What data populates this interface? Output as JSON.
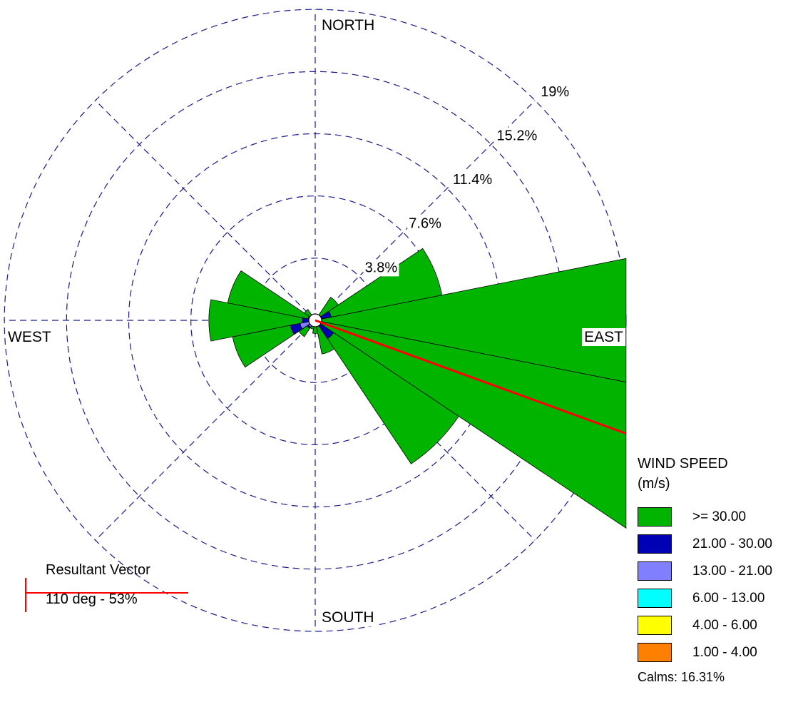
{
  "chart_data": {
    "type": "wind-rose",
    "directions": [
      "N",
      "NNE",
      "NE",
      "ENE",
      "E",
      "ESE",
      "SE",
      "SSE",
      "S",
      "SSW",
      "SW",
      "WSW",
      "W",
      "WNW",
      "NW",
      "NNW"
    ],
    "rings": [
      {
        "value": 3.8,
        "label": "3.8%"
      },
      {
        "value": 7.6,
        "label": "7.6%"
      },
      {
        "value": 11.4,
        "label": "11.4%"
      },
      {
        "value": 15.2,
        "label": "15.2%"
      },
      {
        "value": 19,
        "label": "19%"
      }
    ],
    "compass_labels": {
      "north": "NORTH",
      "south": "SOUTH",
      "east": "EAST",
      "west": "WEST"
    },
    "legend_title": "WIND SPEED\n(m/s)",
    "bins": [
      {
        "label": ">= 30.00",
        "color": "#00b400"
      },
      {
        "label": "21.00 - 30.00",
        "color": "#0000b4"
      },
      {
        "label": "13.00 - 21.00",
        "color": "#8080ff"
      },
      {
        "label": "6.00 - 13.00",
        "color": "#00ffff"
      },
      {
        "label": "4.00 - 6.00",
        "color": "#ffff00"
      },
      {
        "label": "1.00 - 4.00",
        "color": "#ff8000"
      }
    ],
    "frequencies": {
      "N": [
        0.2,
        0.02,
        0,
        0,
        0,
        0
      ],
      "NNE": [
        0.3,
        0.03,
        0,
        0,
        0,
        0
      ],
      "NE": [
        1.5,
        0.15,
        0.05,
        0,
        0,
        0
      ],
      "ENE": [
        6.9,
        0.75,
        0.2,
        0.05,
        0,
        0
      ],
      "E": [
        22.5,
        0,
        0,
        0,
        0,
        0
      ],
      "ESE": [
        23.5,
        0,
        0,
        0,
        0,
        0
      ],
      "SE": [
        9.2,
        1.05,
        0.25,
        0.05,
        0,
        0
      ],
      "SSE": [
        1.8,
        0.25,
        0.05,
        0,
        0,
        0
      ],
      "S": [
        0.7,
        0.1,
        0,
        0,
        0,
        0
      ],
      "SSW": [
        0.4,
        0.1,
        0.05,
        0,
        0,
        0
      ],
      "SW": [
        0.6,
        0.1,
        0.5,
        0,
        0,
        0
      ],
      "WSW": [
        3.6,
        0.6,
        0.9,
        0.05,
        0,
        0
      ],
      "W": [
        5.7,
        0.7,
        0.1,
        0,
        0,
        0
      ],
      "WNW": [
        5.0,
        0.4,
        0.05,
        0,
        0,
        0
      ],
      "NW": [
        0.7,
        0.1,
        0,
        0,
        0,
        0
      ],
      "NNW": [
        0.3,
        0.03,
        0,
        0,
        0,
        0
      ]
    },
    "calms": "Calms: 16.31%",
    "resultant_vector": {
      "title": "Resultant Vector",
      "label": "110 deg - 53%",
      "direction_deg": 110,
      "color": "#ff0000"
    },
    "grid_color": "#1a1a8c"
  }
}
